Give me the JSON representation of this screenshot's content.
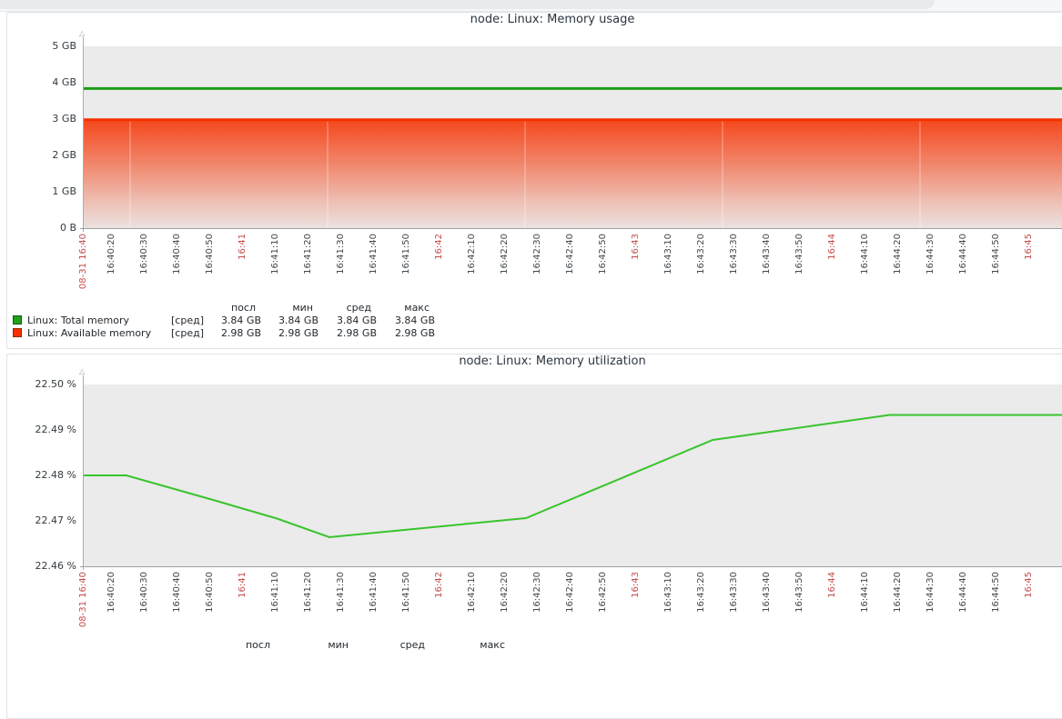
{
  "charts": [
    {
      "title": "node: Linux: Memory usage",
      "y_ticks": [
        "5 GB",
        "4 GB",
        "3 GB",
        "2 GB",
        "1 GB",
        "0 B"
      ],
      "legend": {
        "headers": [
          "посл",
          "мин",
          "сред",
          "макс"
        ],
        "rows": [
          {
            "swatch_color": "#22A01B",
            "swatch_border": "#0D5E0A",
            "label": "Linux: Total memory",
            "aggregation": "[сред]",
            "values": [
              "3.84 GB",
              "3.84 GB",
              "3.84 GB",
              "3.84 GB"
            ]
          },
          {
            "swatch_color": "#F63100",
            "swatch_border": "#8C2807",
            "label": "Linux: Available memory",
            "aggregation": "[сред]",
            "values": [
              "2.98 GB",
              "2.98 GB",
              "2.98 GB",
              "2.98 GB"
            ]
          }
        ]
      }
    },
    {
      "title": "node: Linux: Memory utilization",
      "y_ticks": [
        "22.50 %",
        "22.49 %",
        "22.48 %",
        "22.47 %",
        "22.46 %"
      ],
      "legend": {
        "headers": [
          "посл",
          "мин",
          "сред",
          "макс"
        ],
        "rows": []
      }
    }
  ],
  "x_axis_ticks": [
    {
      "label": "08-31 16:40",
      "red": true
    },
    {
      "label": "16:40:20"
    },
    {
      "label": "16:40:30"
    },
    {
      "label": "16:40:40"
    },
    {
      "label": "16:40:50"
    },
    {
      "label": "16:41",
      "red": true
    },
    {
      "label": "16:41:10"
    },
    {
      "label": "16:41:20"
    },
    {
      "label": "16:41:30"
    },
    {
      "label": "16:41:40"
    },
    {
      "label": "16:41:50"
    },
    {
      "label": "16:42",
      "red": true
    },
    {
      "label": "16:42:10"
    },
    {
      "label": "16:42:20"
    },
    {
      "label": "16:42:30"
    },
    {
      "label": "16:42:40"
    },
    {
      "label": "16:42:50"
    },
    {
      "label": "16:43",
      "red": true
    },
    {
      "label": "16:43:10"
    },
    {
      "label": "16:43:20"
    },
    {
      "label": "16:43:30"
    },
    {
      "label": "16:43:40"
    },
    {
      "label": "16:43:50"
    },
    {
      "label": "16:44",
      "red": true
    },
    {
      "label": "16:44:10"
    },
    {
      "label": "16:44:20"
    },
    {
      "label": "16:44:30"
    },
    {
      "label": "16:44:40"
    },
    {
      "label": "16:44:50"
    },
    {
      "label": "16:45",
      "red": true
    }
  ],
  "chart_data": [
    {
      "type": "area",
      "title": "node: Linux: Memory usage",
      "unit": "GB",
      "ylim": [
        0,
        5
      ],
      "y_ticks": [
        "5 GB",
        "4 GB",
        "3 GB",
        "2 GB",
        "1 GB",
        "0 B"
      ],
      "x_start_label": "08-31 16:40",
      "x_end_label": "16:45",
      "x_tick_step_seconds": 10,
      "grid": true,
      "legend_position": "bottom",
      "series": [
        {
          "name": "Linux: Total memory",
          "draw": "line",
          "color": "#1F9C16",
          "width": 3,
          "points_t_seconds_value": [
            [
              11,
              3.84
            ],
            [
              334,
              3.84
            ]
          ],
          "stats": {
            "посл": "3.84 GB",
            "мин": "3.84 GB",
            "сред": "3.84 GB",
            "макс": "3.84 GB"
          }
        },
        {
          "name": "Linux: Available memory",
          "draw": "gradient-area",
          "color": "#F63100",
          "width": 3,
          "points_t_seconds_value": [
            [
              11,
              2.98
            ],
            [
              334,
              2.98
            ]
          ],
          "stats": {
            "посл": "2.98 GB",
            "мин": "2.98 GB",
            "сред": "2.98 GB",
            "макс": "2.98 GB"
          }
        }
      ]
    },
    {
      "type": "line",
      "title": "node: Linux: Memory utilization",
      "unit": "%",
      "ylim": [
        22.46,
        22.5
      ],
      "y_ticks": [
        "22.50 %",
        "22.49 %",
        "22.48 %",
        "22.47 %",
        "22.46 %"
      ],
      "x_start_label": "08-31 16:40",
      "x_end_label": "16:45",
      "x_tick_step_seconds": 10,
      "grid": true,
      "series": [
        {
          "name": "Linux: Memory utilization",
          "draw": "line",
          "color": "#38C42C",
          "width": 2,
          "points_t_seconds_value": [
            [
              11,
              22.48
            ],
            [
              24,
              22.48
            ],
            [
              50,
              22.4747
            ],
            [
              70,
              22.4705
            ],
            [
              86,
              22.4664
            ],
            [
              146,
              22.4706
            ],
            [
              203,
              22.4878
            ],
            [
              257,
              22.4933
            ],
            [
              334,
              22.4933
            ]
          ]
        }
      ]
    }
  ]
}
